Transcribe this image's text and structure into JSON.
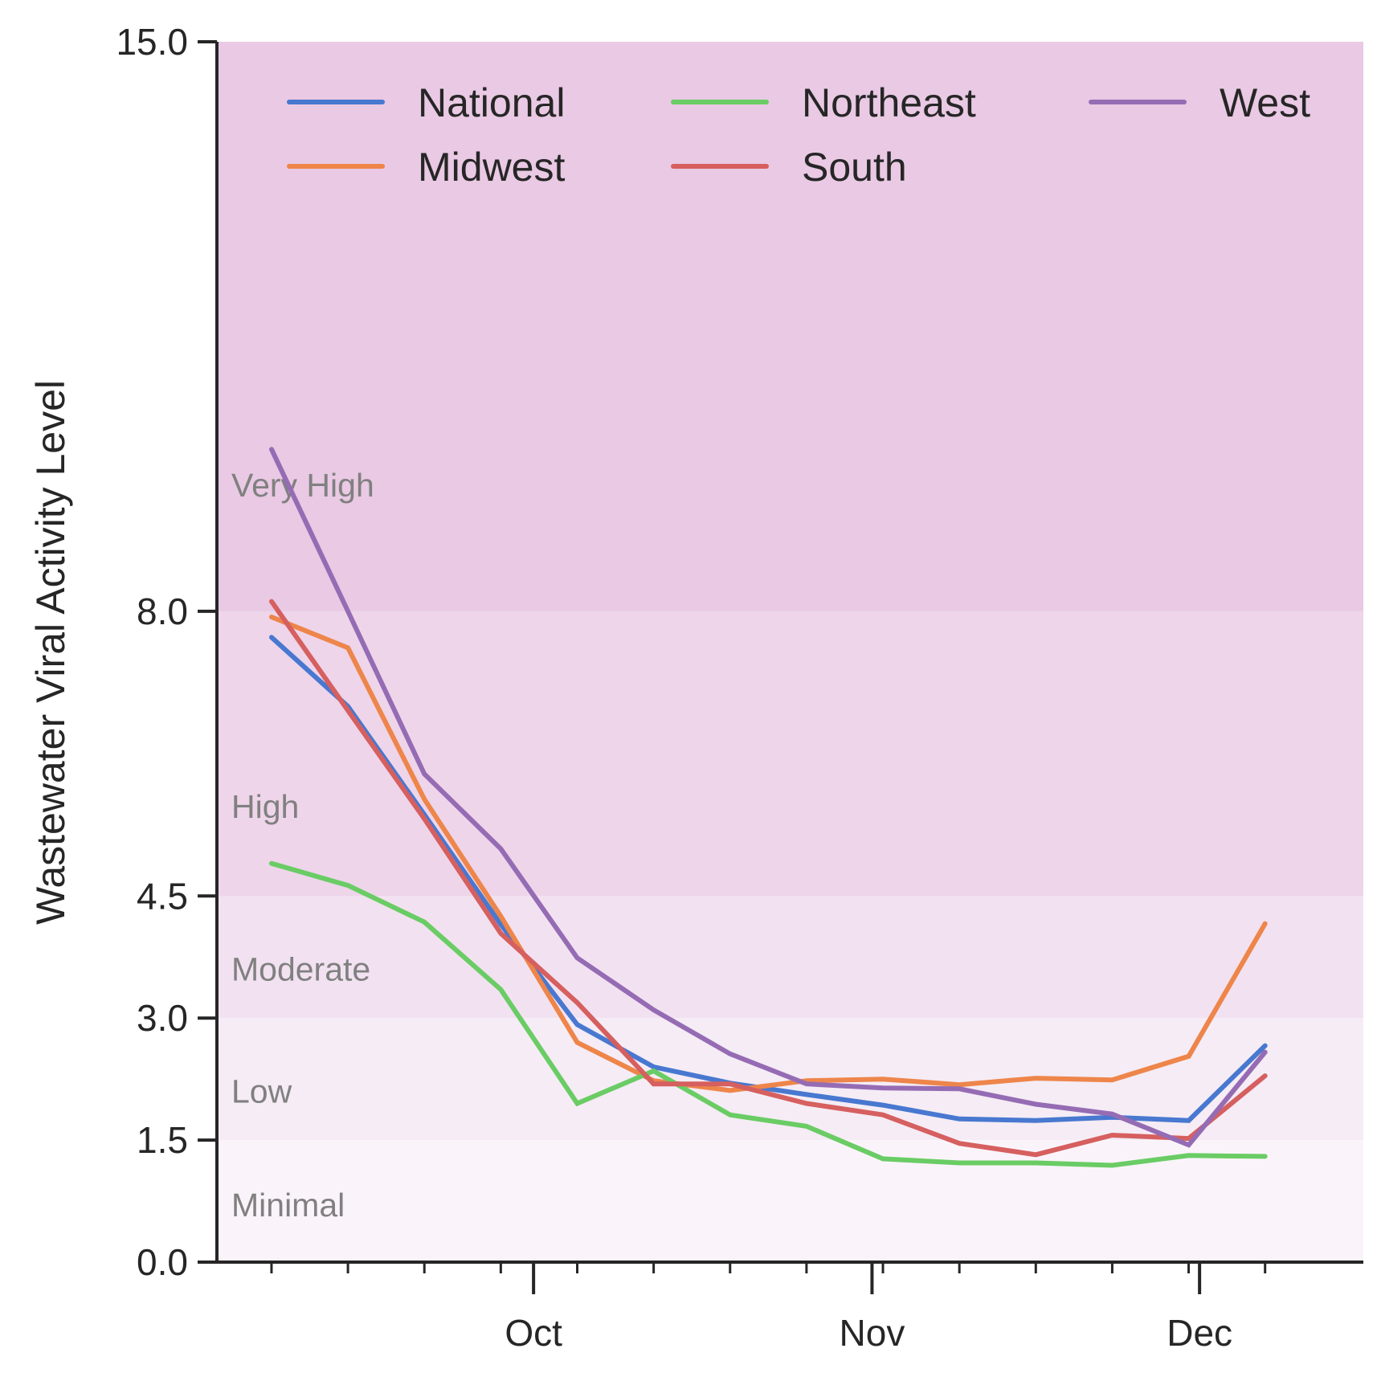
{
  "chart_data": {
    "type": "line",
    "title": "",
    "xlabel": "",
    "ylabel": "Wastewater Viral Activity Level",
    "ylim": [
      0,
      15
    ],
    "yticks": [
      "0.0",
      "1.5",
      "3.0",
      "4.5",
      "8.0",
      "15.0"
    ],
    "ytick_values": [
      0,
      1.5,
      3.0,
      4.5,
      8.0,
      15.0
    ],
    "x_dates": [
      "2024-09-07",
      "2024-09-14",
      "2024-09-21",
      "2024-09-28",
      "2024-10-05",
      "2024-10-12",
      "2024-10-19",
      "2024-10-26",
      "2024-11-02",
      "2024-11-09",
      "2024-11-16",
      "2024-11-23",
      "2024-11-30",
      "2024-12-07"
    ],
    "x_major_ticks": [
      {
        "date": "2024-10-01",
        "label": "Oct"
      },
      {
        "date": "2024-11-01",
        "label": "Nov"
      },
      {
        "date": "2024-12-01",
        "label": "Dec"
      }
    ],
    "x_range": [
      "2024-09-02",
      "2024-12-16"
    ],
    "grid": false,
    "bands": [
      {
        "label": "Minimal",
        "from": 0,
        "to": 1.5,
        "color": "#faf4fa"
      },
      {
        "label": "Low",
        "from": 1.5,
        "to": 3.0,
        "color": "#f5ecf5"
      },
      {
        "label": "Moderate",
        "from": 3.0,
        "to": 4.5,
        "color": "#f2e2f1"
      },
      {
        "label": "High",
        "from": 4.5,
        "to": 8.0,
        "color": "#eed5ea"
      },
      {
        "label": "Very High",
        "from": 8.0,
        "to": 15.0,
        "color": "#e9c9e3"
      }
    ],
    "band_label_values": [
      0.7,
      2.1,
      3.6,
      5.6,
      9.55
    ],
    "legend": {
      "placement": "top",
      "columns": 3
    },
    "series": [
      {
        "name": "National",
        "color": "#4878d0",
        "values": [
          7.68,
          6.83,
          5.5,
          4.15,
          2.92,
          2.4,
          2.2,
          2.06,
          1.93,
          1.76,
          1.74,
          1.78,
          1.74,
          2.66
        ]
      },
      {
        "name": "Midwest",
        "color": "#ee854a",
        "values": [
          7.93,
          7.55,
          5.69,
          4.25,
          2.7,
          2.23,
          2.11,
          2.23,
          2.25,
          2.18,
          2.26,
          2.24,
          2.53,
          4.16
        ]
      },
      {
        "name": "Northeast",
        "color": "#6acc64",
        "values": [
          4.9,
          4.63,
          4.18,
          3.35,
          1.95,
          2.35,
          1.81,
          1.67,
          1.27,
          1.22,
          1.22,
          1.19,
          1.31,
          1.3
        ]
      },
      {
        "name": "South",
        "color": "#d65f5f",
        "values": [
          8.12,
          6.78,
          5.45,
          4.04,
          3.19,
          2.19,
          2.19,
          1.95,
          1.81,
          1.46,
          1.32,
          1.56,
          1.52,
          2.29
        ]
      },
      {
        "name": "West",
        "color": "#956cb4",
        "values": [
          9.99,
          8.0,
          6.0,
          5.08,
          3.74,
          3.1,
          2.56,
          2.19,
          2.14,
          2.13,
          1.94,
          1.82,
          1.44,
          2.58
        ]
      }
    ]
  }
}
